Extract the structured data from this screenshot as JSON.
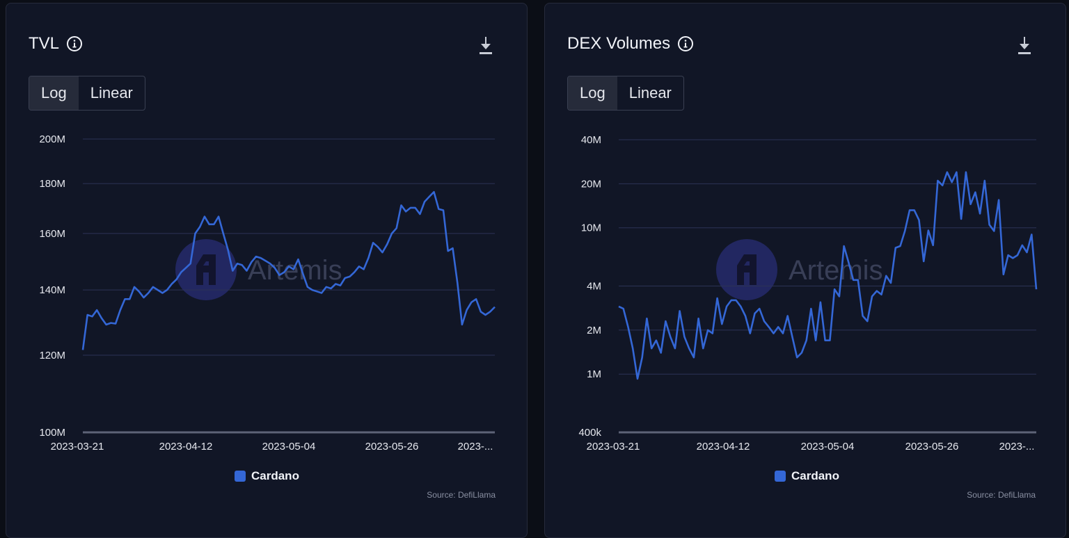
{
  "panels": [
    {
      "title": "TVL",
      "toggle": {
        "log_label": "Log",
        "linear_label": "Linear",
        "selected": "Log"
      },
      "source": "Source: DefiLlama",
      "watermark": "Artemis",
      "legend": "Cardano",
      "icons": {
        "info": "info-icon",
        "download": "download-icon"
      }
    },
    {
      "title": "DEX Volumes",
      "toggle": {
        "log_label": "Log",
        "linear_label": "Linear",
        "selected": "Log"
      },
      "source": "Source: DefiLlama",
      "watermark": "Artemis",
      "legend": "Cardano",
      "icons": {
        "info": "info-icon",
        "download": "download-icon"
      }
    }
  ],
  "colors": {
    "series": "#3467d6",
    "background": "#111626",
    "grid": "#2c3356"
  },
  "chart_data": [
    {
      "type": "line",
      "title": "TVL",
      "yscale": "log",
      "ylim": [
        100000000,
        200000000
      ],
      "yticks": [
        {
          "value": 200000000,
          "label": "200M"
        },
        {
          "value": 180000000,
          "label": "180M"
        },
        {
          "value": 160000000,
          "label": "160M"
        },
        {
          "value": 140000000,
          "label": "140M"
        },
        {
          "value": 120000000,
          "label": "120M"
        },
        {
          "value": 100000000,
          "label": "100M"
        }
      ],
      "xticks": [
        "2023-03-21",
        "2023-04-12",
        "2023-05-04",
        "2023-05-26",
        "2023-..."
      ],
      "x_start": "2023-03-21",
      "x_end": "2023-06-17",
      "grid": true,
      "legend_position": "bottom-center",
      "series": [
        {
          "name": "Cardano",
          "values": [
            121.5,
            132,
            131.5,
            133.5,
            131,
            129,
            129.5,
            129.3,
            133.5,
            137,
            137,
            141,
            139.5,
            137.5,
            139,
            141,
            140,
            139,
            140,
            142,
            143.5,
            146,
            147.5,
            149,
            160,
            162.5,
            166.5,
            163.5,
            163.5,
            166.5,
            160,
            154,
            146.5,
            149,
            148.5,
            146.5,
            149.5,
            151.5,
            151,
            150,
            149,
            147.5,
            145,
            146,
            148,
            147,
            150.5,
            145.5,
            141,
            140,
            139.5,
            139,
            141,
            140.5,
            142,
            141.5,
            144,
            144.5,
            146,
            148,
            147,
            151,
            156.5,
            155,
            153,
            156,
            160,
            162,
            171,
            168.5,
            170,
            170,
            167.5,
            172.5,
            174.5,
            176.5,
            169.5,
            169,
            153.5,
            154.5,
            142.5,
            129,
            133.5,
            136,
            137,
            133,
            132,
            133,
            134.5
          ]
        }
      ]
    },
    {
      "type": "line",
      "title": "DEX Volumes",
      "yscale": "log",
      "ylim": [
        400000,
        40000000
      ],
      "yticks": [
        {
          "value": 40000000,
          "label": "40M"
        },
        {
          "value": 20000000,
          "label": "20M"
        },
        {
          "value": 10000000,
          "label": "10M"
        },
        {
          "value": 4000000,
          "label": "4M"
        },
        {
          "value": 2000000,
          "label": "2M"
        },
        {
          "value": 1000000,
          "label": "1M"
        },
        {
          "value": 400000,
          "label": "400k"
        }
      ],
      "xticks": [
        "2023-03-21",
        "2023-04-12",
        "2023-05-04",
        "2023-05-26",
        "2023-..."
      ],
      "x_start": "2023-03-21",
      "x_end": "2023-06-17",
      "grid": true,
      "legend_position": "bottom-center",
      "series": [
        {
          "name": "Cardano",
          "values": [
            2.9,
            2.8,
            2.1,
            1.5,
            0.93,
            1.3,
            2.4,
            1.5,
            1.7,
            1.4,
            2.3,
            1.8,
            1.5,
            2.7,
            1.8,
            1.5,
            1.3,
            2.4,
            1.5,
            2.0,
            1.9,
            3.3,
            2.2,
            2.9,
            3.2,
            3.2,
            2.9,
            2.5,
            1.9,
            2.6,
            2.8,
            2.3,
            2.1,
            1.9,
            2.1,
            1.9,
            2.5,
            1.8,
            1.3,
            1.4,
            1.7,
            2.8,
            1.7,
            3.1,
            1.7,
            1.7,
            3.8,
            3.4,
            7.5,
            5.8,
            4.4,
            4.4,
            2.5,
            2.3,
            3.4,
            3.7,
            3.5,
            4.7,
            4.2,
            7.3,
            7.5,
            9.5,
            13.2,
            13.2,
            11.3,
            5.9,
            9.6,
            7.6,
            21,
            19.5,
            24,
            20.5,
            24,
            11.5,
            24,
            14.5,
            17.5,
            12.5,
            21,
            10.5,
            9.5,
            15.5,
            4.8,
            6.5,
            6.2,
            6.5,
            7.6,
            6.8,
            9.0,
            3.8
          ]
        }
      ]
    }
  ]
}
